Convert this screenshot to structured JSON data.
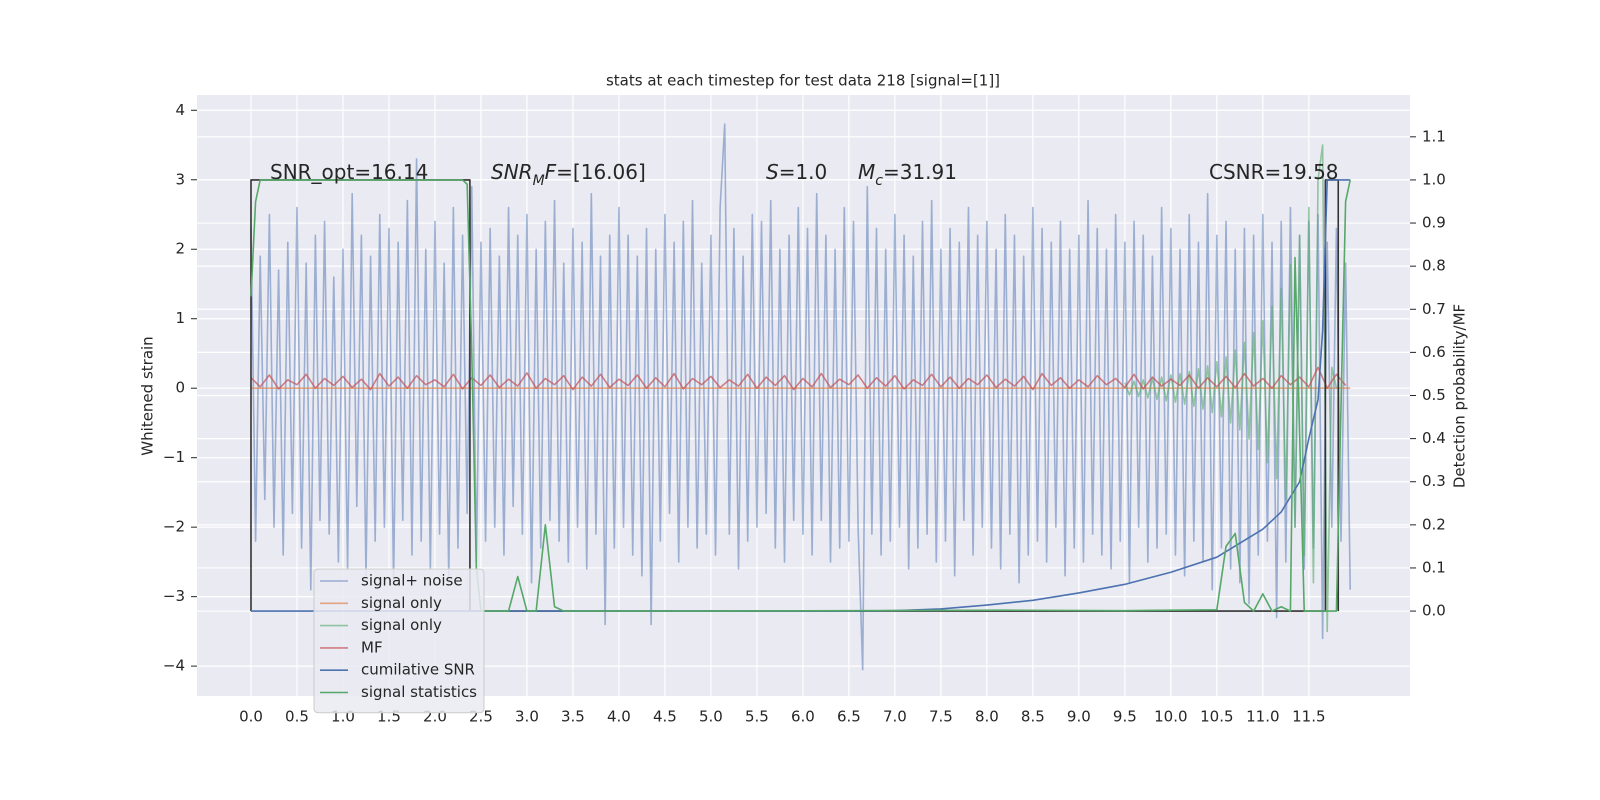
{
  "chart_data": {
    "type": "line",
    "title": "stats at each timestep for test data 218 [signal=[1]]",
    "y_label": "Whitened strain",
    "y2_label": "Detection probability/MF",
    "xlim": [
      -0.587,
      12.6
    ],
    "ylim": [
      -4.43,
      4.22
    ],
    "y2lim": [
      -0.197,
      1.197
    ],
    "xticks": [
      {
        "value": 0,
        "label": "0.0"
      },
      0.5,
      {
        "value": 1,
        "label": "1.0"
      },
      1.5,
      {
        "value": 2,
        "label": "2.0"
      },
      2.5,
      {
        "value": 3,
        "label": "3.0"
      },
      3.5,
      {
        "value": 4,
        "label": "4.0"
      },
      4.5,
      {
        "value": 5,
        "label": "5.0"
      },
      5.5,
      {
        "value": 6,
        "label": "6.0"
      },
      6.5,
      {
        "value": 7,
        "label": "7.0"
      },
      7.5,
      {
        "value": 8,
        "label": "8.0"
      },
      8.5,
      {
        "value": 9,
        "label": "9.0"
      },
      9.5,
      {
        "value": 10,
        "label": "10.0"
      },
      10.5,
      {
        "value": 11,
        "label": "11.0"
      },
      11.5
    ],
    "yticks": [
      {
        "value": -4,
        "label": "−4"
      },
      {
        "value": -3,
        "label": "−3"
      },
      {
        "value": -2,
        "label": "−2"
      },
      {
        "value": -1,
        "label": "−1"
      },
      0,
      1,
      2,
      3,
      4
    ],
    "y2ticks": [
      {
        "value": 0,
        "label": "0.0"
      },
      0.1,
      0.2,
      0.3,
      0.4,
      0.5,
      0.6,
      0.7,
      0.8,
      0.9,
      {
        "value": 1,
        "label": "1.0"
      },
      1.1
    ],
    "grid": true,
    "legend": "lower left",
    "annotations": [
      {
        "parts": [
          {
            "t": "SNR_opt=16.14"
          }
        ]
      },
      {
        "parts": [
          {
            "t": "SNR",
            "italic": true
          },
          {
            "t": "M",
            "italic": true,
            "sub": true
          },
          {
            "t": "F",
            "italic": true
          },
          {
            "t": "=[16.06]"
          }
        ]
      },
      {
        "parts": [
          {
            "t": "S",
            "italic": true
          },
          {
            "t": "=1.0"
          }
        ]
      },
      {
        "parts": [
          {
            "t": "M",
            "italic": true
          },
          {
            "t": "c",
            "italic": true,
            "sub": true
          },
          {
            "t": "=31.91"
          }
        ]
      },
      {
        "parts": [
          {
            "t": "CSNR=19.58"
          }
        ]
      }
    ],
    "series": [
      {
        "name": "signal+ noise",
        "color": "#4c72b0",
        "opacity": 0.5,
        "axis": "y",
        "x": [
          0,
          0.05,
          0.1,
          0.15,
          0.2,
          0.25,
          0.3,
          0.35,
          0.4,
          0.45,
          0.5,
          0.55,
          0.6,
          0.65,
          0.7,
          0.75,
          0.8,
          0.85,
          0.9,
          0.95,
          1,
          1.05,
          1.1,
          1.15,
          1.2,
          1.25,
          1.3,
          1.35,
          1.4,
          1.45,
          1.5,
          1.55,
          1.6,
          1.65,
          1.7,
          1.75,
          1.8,
          1.85,
          1.9,
          1.95,
          2,
          2.05,
          2.1,
          2.15,
          2.2,
          2.25,
          2.3,
          2.35,
          2.4,
          2.45,
          2.5,
          2.55,
          2.6,
          2.65,
          2.7,
          2.75,
          2.8,
          2.85,
          2.9,
          2.95,
          3,
          3.05,
          3.1,
          3.15,
          3.2,
          3.25,
          3.3,
          3.35,
          3.4,
          3.45,
          3.5,
          3.55,
          3.6,
          3.65,
          3.7,
          3.75,
          3.8,
          3.85,
          3.9,
          3.95,
          4,
          4.05,
          4.1,
          4.15,
          4.2,
          4.25,
          4.3,
          4.35,
          4.4,
          4.45,
          4.5,
          4.55,
          4.6,
          4.65,
          4.7,
          4.75,
          4.8,
          4.85,
          4.9,
          4.95,
          5,
          5.05,
          5.1,
          5.15,
          5.2,
          5.25,
          5.3,
          5.35,
          5.4,
          5.45,
          5.5,
          5.55,
          5.6,
          5.65,
          5.7,
          5.75,
          5.8,
          5.85,
          5.9,
          5.95,
          6,
          6.05,
          6.1,
          6.15,
          6.2,
          6.25,
          6.3,
          6.35,
          6.4,
          6.45,
          6.5,
          6.55,
          6.6,
          6.65,
          6.7,
          6.75,
          6.8,
          6.85,
          6.9,
          6.95,
          7,
          7.05,
          7.1,
          7.15,
          7.2,
          7.25,
          7.3,
          7.35,
          7.4,
          7.45,
          7.5,
          7.55,
          7.6,
          7.65,
          7.7,
          7.75,
          7.8,
          7.85,
          7.9,
          7.95,
          8,
          8.05,
          8.1,
          8.15,
          8.2,
          8.25,
          8.3,
          8.35,
          8.4,
          8.45,
          8.5,
          8.55,
          8.6,
          8.65,
          8.7,
          8.75,
          8.8,
          8.85,
          8.9,
          8.95,
          9,
          9.05,
          9.1,
          9.15,
          9.2,
          9.25,
          9.3,
          9.35,
          9.4,
          9.45,
          9.5,
          9.55,
          9.6,
          9.65,
          9.7,
          9.75,
          9.8,
          9.85,
          9.9,
          9.95,
          10,
          10.05,
          10.1,
          10.15,
          10.2,
          10.25,
          10.3,
          10.35,
          10.4,
          10.45,
          10.5,
          10.55,
          10.6,
          10.65,
          10.7,
          10.75,
          10.8,
          10.85,
          10.9,
          10.95,
          11,
          11.05,
          11.1,
          11.15,
          11.2,
          11.25,
          11.3,
          11.35,
          11.4,
          11.45,
          11.5,
          11.55,
          11.6,
          11.65,
          11.7,
          11.75,
          11.8,
          11.85,
          11.9,
          11.95
        ],
        "values": [
          2.3,
          -2.2,
          1.9,
          -1.6,
          2.5,
          -2.0,
          1.7,
          -2.4,
          2.1,
          -1.8,
          2.6,
          -2.3,
          1.8,
          -2.9,
          2.2,
          -1.9,
          2.4,
          -2.1,
          1.6,
          -2.5,
          2.0,
          -2.6,
          2.8,
          -1.7,
          2.2,
          -2.7,
          1.9,
          -2.2,
          2.5,
          -2.0,
          2.3,
          -2.8,
          2.1,
          -1.9,
          2.7,
          -2.4,
          3.3,
          -2.2,
          2.0,
          -2.6,
          2.4,
          -2.1,
          1.8,
          -2.7,
          2.6,
          -2.3,
          2.2,
          -1.8,
          2.9,
          -2.5,
          2.1,
          -2.2,
          2.3,
          -2.0,
          1.9,
          -2.4,
          2.6,
          -1.7,
          2.2,
          -2.1,
          2.5,
          -2.8,
          2.0,
          -2.3,
          2.4,
          -1.9,
          2.7,
          -2.2,
          1.8,
          -2.5,
          2.3,
          -2.0,
          2.1,
          -2.6,
          2.8,
          -2.1,
          1.9,
          -3.4,
          2.2,
          -2.3,
          2.6,
          -2.0,
          2.2,
          -2.4,
          1.9,
          -2.7,
          2.3,
          -3.4,
          2.0,
          -2.2,
          2.5,
          -1.8,
          2.1,
          -2.5,
          2.4,
          -2.0,
          2.7,
          -2.3,
          1.8,
          -2.1,
          2.2,
          -2.4,
          2.6,
          3.8,
          -2.1,
          2.3,
          -2.6,
          1.9,
          -2.2,
          2.5,
          -2.0,
          2.4,
          -1.8,
          2.7,
          -2.3,
          2.0,
          -2.5,
          2.2,
          -1.9,
          2.6,
          -2.1,
          2.3,
          -2.4,
          2.8,
          -1.9,
          2.2,
          -2.5,
          2.0,
          -2.3,
          2.6,
          -2.2,
          2.4,
          -2.0,
          -4.05,
          2.9,
          -2.1,
          2.3,
          -2.4,
          2.0,
          -2.2,
          2.5,
          -2.0,
          2.2,
          -2.6,
          1.9,
          -2.3,
          2.4,
          -2.1,
          2.7,
          -2.5,
          2.0,
          -2.2,
          2.3,
          -2.7,
          2.1,
          -1.9,
          2.6,
          -2.4,
          2.2,
          -2.0,
          2.4,
          -2.3,
          2.0,
          -2.6,
          2.5,
          -2.1,
          2.2,
          -2.8,
          1.9,
          -2.4,
          2.6,
          -2.2,
          2.3,
          -2.5,
          2.1,
          -2.0,
          2.4,
          -2.7,
          2.0,
          -2.3,
          2.2,
          -2.5,
          2.7,
          -2.1,
          2.3,
          -2.4,
          2.0,
          -2.6,
          2.5,
          -2.2,
          2.1,
          -2.8,
          2.4,
          -2.0,
          2.2,
          -2.5,
          1.9,
          -2.3,
          2.6,
          -2.1,
          2.3,
          -2.4,
          2.0,
          -2.7,
          2.5,
          -2.2,
          2.1,
          -2.5,
          2.8,
          -2.9,
          2.2,
          -2.3,
          2.4,
          -2.6,
          2.0,
          -2.8,
          2.3,
          -3.1,
          2.2,
          -2.4,
          2.5,
          -2.2,
          2.1,
          -3.3,
          2.4,
          -2.5,
          2.6,
          -2.0,
          2.2,
          -2.6,
          2.4,
          -2.3,
          2.5,
          -3.6,
          2.1,
          -2.0,
          2.3,
          -2.2,
          1.8,
          -2.9
        ]
      },
      {
        "name": "signal only",
        "color": "#dd8452",
        "opacity": 0.7,
        "axis": "y",
        "x": [
          0,
          9.5,
          11.8,
          11.95
        ],
        "values": [
          0,
          0,
          0,
          0
        ]
      },
      {
        "name": "signal only",
        "color": "#55a868",
        "opacity": 0.6,
        "axis": "y",
        "x": [
          9.5,
          9.55,
          9.6,
          9.65,
          9.7,
          9.75,
          9.8,
          9.85,
          9.9,
          9.95,
          10,
          10.05,
          10.1,
          10.15,
          10.2,
          10.25,
          10.3,
          10.35,
          10.4,
          10.45,
          10.5,
          10.55,
          10.6,
          10.65,
          10.7,
          10.75,
          10.8,
          10.85,
          10.9,
          10.95,
          11,
          11.05,
          11.1,
          11.15,
          11.2,
          11.25,
          11.3,
          11.35,
          11.4,
          11.45,
          11.5,
          11.55,
          11.6,
          11.65,
          11.7,
          11.75,
          11.8
        ],
        "values": [
          0.08,
          -0.1,
          0.1,
          -0.12,
          0.12,
          -0.14,
          0.14,
          -0.16,
          0.16,
          -0.18,
          0.19,
          -0.2,
          0.21,
          -0.23,
          0.24,
          -0.26,
          0.28,
          -0.3,
          0.32,
          -0.35,
          0.38,
          -0.41,
          0.45,
          -0.5,
          0.55,
          -0.6,
          0.66,
          -0.73,
          0.8,
          -0.88,
          0.97,
          -1.07,
          1.18,
          -1.3,
          1.44,
          -1.6,
          1.78,
          -2.0,
          2.2,
          -2.4,
          2.6,
          -2.8,
          3.0,
          3.5,
          -3.5,
          0.3,
          0.0
        ]
      },
      {
        "name": "MF",
        "color": "#c44e52",
        "opacity": 0.7,
        "axis": "y",
        "x": [
          0,
          0.1,
          0.2,
          0.3,
          0.4,
          0.5,
          0.6,
          0.7,
          0.8,
          0.9,
          1,
          1.1,
          1.2,
          1.3,
          1.4,
          1.5,
          1.6,
          1.7,
          1.8,
          1.9,
          2,
          2.1,
          2.2,
          2.3,
          2.4,
          2.5,
          2.6,
          2.7,
          2.8,
          2.9,
          3,
          3.1,
          3.2,
          3.3,
          3.4,
          3.5,
          3.6,
          3.7,
          3.8,
          3.9,
          4,
          4.1,
          4.2,
          4.3,
          4.4,
          4.5,
          4.6,
          4.7,
          4.8,
          4.9,
          5,
          5.1,
          5.2,
          5.3,
          5.4,
          5.5,
          5.6,
          5.7,
          5.8,
          5.9,
          6,
          6.1,
          6.2,
          6.3,
          6.4,
          6.5,
          6.6,
          6.7,
          6.8,
          6.9,
          7,
          7.1,
          7.2,
          7.3,
          7.4,
          7.5,
          7.6,
          7.7,
          7.8,
          7.9,
          8,
          8.1,
          8.2,
          8.3,
          8.4,
          8.5,
          8.6,
          8.7,
          8.8,
          8.9,
          9,
          9.1,
          9.2,
          9.3,
          9.4,
          9.5,
          9.6,
          9.7,
          9.8,
          9.9,
          10,
          10.1,
          10.2,
          10.3,
          10.4,
          10.5,
          10.6,
          10.7,
          10.8,
          10.9,
          11,
          11.1,
          11.2,
          11.3,
          11.4,
          11.5,
          11.6,
          11.7,
          11.8,
          11.9
        ],
        "values": [
          0.15,
          0.02,
          0.19,
          -0.01,
          0.12,
          0.05,
          0.2,
          0.0,
          0.14,
          0.04,
          0.17,
          0.01,
          0.13,
          -0.02,
          0.21,
          0.03,
          0.16,
          0.0,
          0.18,
          0.05,
          0.12,
          0.02,
          0.2,
          -0.01,
          0.15,
          0.04,
          0.19,
          0.01,
          0.13,
          0.03,
          0.22,
          0.0,
          0.14,
          0.05,
          0.18,
          -0.02,
          0.16,
          0.03,
          0.2,
          0.01,
          0.13,
          0.04,
          0.19,
          0.0,
          0.15,
          0.02,
          0.21,
          -0.01,
          0.14,
          0.05,
          0.17,
          0.01,
          0.12,
          0.03,
          0.2,
          0.0,
          0.16,
          0.04,
          0.18,
          -0.02,
          0.14,
          0.02,
          0.21,
          0.01,
          0.13,
          0.05,
          0.19,
          0.0,
          0.15,
          0.03,
          0.18,
          -0.01,
          0.12,
          0.04,
          0.2,
          0.02,
          0.16,
          0.0,
          0.14,
          0.05,
          0.19,
          0.01,
          0.13,
          0.03,
          0.17,
          -0.02,
          0.21,
          0.04,
          0.15,
          0.0,
          0.12,
          0.02,
          0.18,
          0.05,
          0.14,
          0.01,
          0.2,
          -0.01,
          0.16,
          0.03,
          0.13,
          0.04,
          0.19,
          0.0,
          0.15,
          0.02,
          0.17,
          0.01,
          0.21,
          0.03,
          0.14,
          0.0,
          0.18,
          0.05,
          0.16,
          0.02,
          0.3,
          0.0,
          0.2,
          0.04
        ]
      },
      {
        "color": "#333333",
        "opacity": 1,
        "axis": "y2",
        "x": [
          0,
          0,
          2.38,
          2.38,
          11.68,
          11.68,
          11.82,
          11.82
        ],
        "values": [
          0,
          1,
          1,
          0,
          0,
          1,
          1,
          0
        ]
      },
      {
        "name": "cumilative SNR",
        "color": "#4c72b0",
        "opacity": 1,
        "axis": "y2",
        "x": [
          0,
          6.5,
          7,
          7.5,
          8,
          8.5,
          9,
          9.5,
          10,
          10.5,
          11,
          11.2,
          11.4,
          11.5,
          11.6,
          11.65,
          11.7,
          11.95
        ],
        "values": [
          0,
          0,
          0.001,
          0.005,
          0.014,
          0.025,
          0.042,
          0.062,
          0.09,
          0.125,
          0.19,
          0.23,
          0.3,
          0.4,
          0.49,
          0.65,
          1.0,
          1.0
        ]
      },
      {
        "name": "signal statistics",
        "color": "#55a868",
        "opacity": 1,
        "axis": "y2",
        "x": [
          0,
          0.05,
          0.1,
          0.2,
          1,
          2,
          2.3,
          2.35,
          2.4,
          2.45,
          2.5,
          2.8,
          2.9,
          3,
          3.1,
          3.2,
          3.3,
          3.4,
          5,
          8.2,
          9.5,
          10.5,
          10.6,
          10.7,
          10.8,
          10.9,
          11,
          11.1,
          11.2,
          11.3,
          11.35,
          11.45,
          11.6,
          11.8,
          11.9,
          11.95
        ],
        "values": [
          0.73,
          0.95,
          1.0,
          1.0,
          1.0,
          1.0,
          1.0,
          0.99,
          0.6,
          0.1,
          0.0,
          0.0,
          0.08,
          0.0,
          0.0,
          0.2,
          0.01,
          0.0,
          0.0,
          0.002,
          0.001,
          0.003,
          0.15,
          0.18,
          0.02,
          0.0,
          0.04,
          0.0,
          0.01,
          0.0,
          0.82,
          0.0,
          0.0,
          0.0,
          0.95,
          1.0
        ]
      }
    ]
  }
}
